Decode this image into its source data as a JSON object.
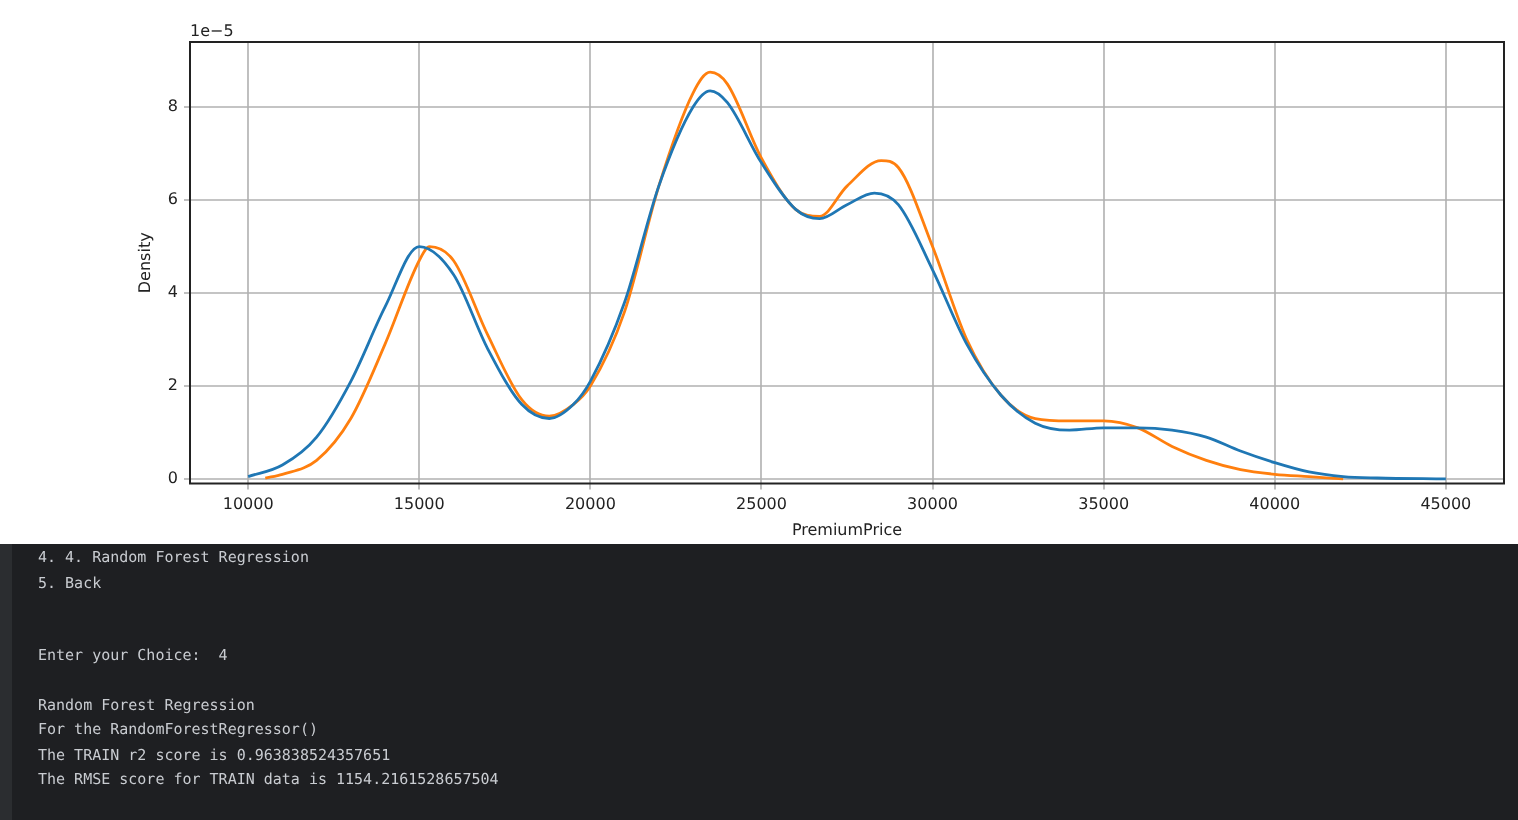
{
  "chart_data": {
    "type": "line",
    "xlabel": "PremiumPrice",
    "ylabel": "Density",
    "annotations": [
      "1e−5",
      "4. 4. Random Forest Regression",
      "5. Back",
      "Enter your Choice:  4",
      "Random Forest Regression",
      "For the RandomForestRegressor()",
      "The TRAIN r2 score is 0.963838524357651",
      "The RMSE score for TRAIN data is 1154.2161528657504"
    ],
    "series": [
      {
        "color": "#1f77b4",
        "x": [
          10000,
          11000,
          12000,
          13000,
          14000,
          15000,
          16000,
          17000,
          18000,
          18800,
          19500,
          20000,
          21000,
          22000,
          23000,
          23500,
          24000,
          25000,
          26000,
          26700,
          27500,
          28300,
          29000,
          30000,
          31000,
          32000,
          33000,
          34000,
          35000,
          36000,
          37000,
          38000,
          39000,
          40000,
          41000,
          42000,
          43000,
          45000
        ],
        "values": [
          0.05,
          0.3,
          0.9,
          2.1,
          3.7,
          5.0,
          4.4,
          2.8,
          1.6,
          1.3,
          1.6,
          2.1,
          3.8,
          6.3,
          8.0,
          8.35,
          8.1,
          6.8,
          5.8,
          5.6,
          5.9,
          6.15,
          5.9,
          4.5,
          2.9,
          1.8,
          1.2,
          1.05,
          1.1,
          1.1,
          1.05,
          0.9,
          0.6,
          0.35,
          0.15,
          0.05,
          0.02,
          0
        ]
      },
      {
        "color": "#ff7f0e",
        "x": [
          10500,
          11000,
          12000,
          13000,
          14000,
          15000,
          15300,
          16000,
          17000,
          18000,
          18800,
          19500,
          20000,
          21000,
          22000,
          23000,
          23500,
          24000,
          25000,
          26000,
          26700,
          27500,
          28500,
          29000,
          30000,
          31000,
          32000,
          33000,
          34000,
          35000,
          36000,
          37000,
          38000,
          39000,
          40000,
          41000,
          42000
        ],
        "values": [
          0.02,
          0.1,
          0.4,
          1.3,
          2.9,
          4.7,
          5.0,
          4.7,
          3.1,
          1.7,
          1.35,
          1.6,
          2.0,
          3.6,
          6.3,
          8.3,
          8.75,
          8.5,
          6.9,
          5.8,
          5.65,
          6.3,
          6.85,
          6.7,
          5.0,
          3.0,
          1.8,
          1.3,
          1.25,
          1.25,
          1.1,
          0.7,
          0.4,
          0.2,
          0.1,
          0.05,
          0
        ]
      }
    ],
    "xlim": [
      8300,
      46700
    ],
    "xticks": [
      10000,
      15000,
      20000,
      25000,
      30000,
      35000,
      40000,
      45000
    ],
    "ylim": [
      -0.1,
      9.4
    ],
    "yticks": [
      0,
      2,
      4,
      6,
      8
    ],
    "grid": true,
    "legend": false,
    "marker": "none",
    "line_style": "solid"
  }
}
